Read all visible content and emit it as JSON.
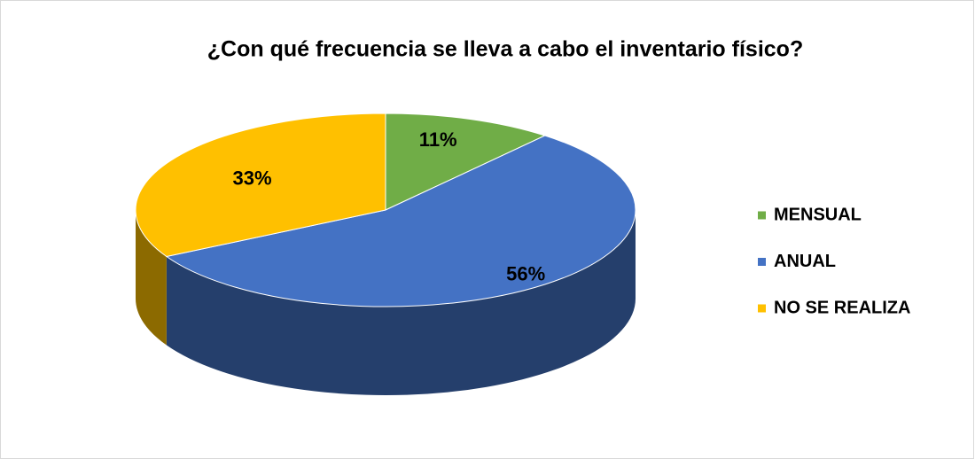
{
  "chart_data": {
    "type": "pie",
    "title": "¿Con qué frecuencia se lleva a cabo el inventario físico?",
    "categories": [
      "MENSUAL",
      "ANUAL",
      "NO SE REALIZA"
    ],
    "values": [
      11,
      56,
      33
    ],
    "value_labels": [
      "11%",
      "56%",
      "33%"
    ],
    "colors": [
      "#70ad47",
      "#4472c4",
      "#ffc000"
    ],
    "legend": "right"
  }
}
